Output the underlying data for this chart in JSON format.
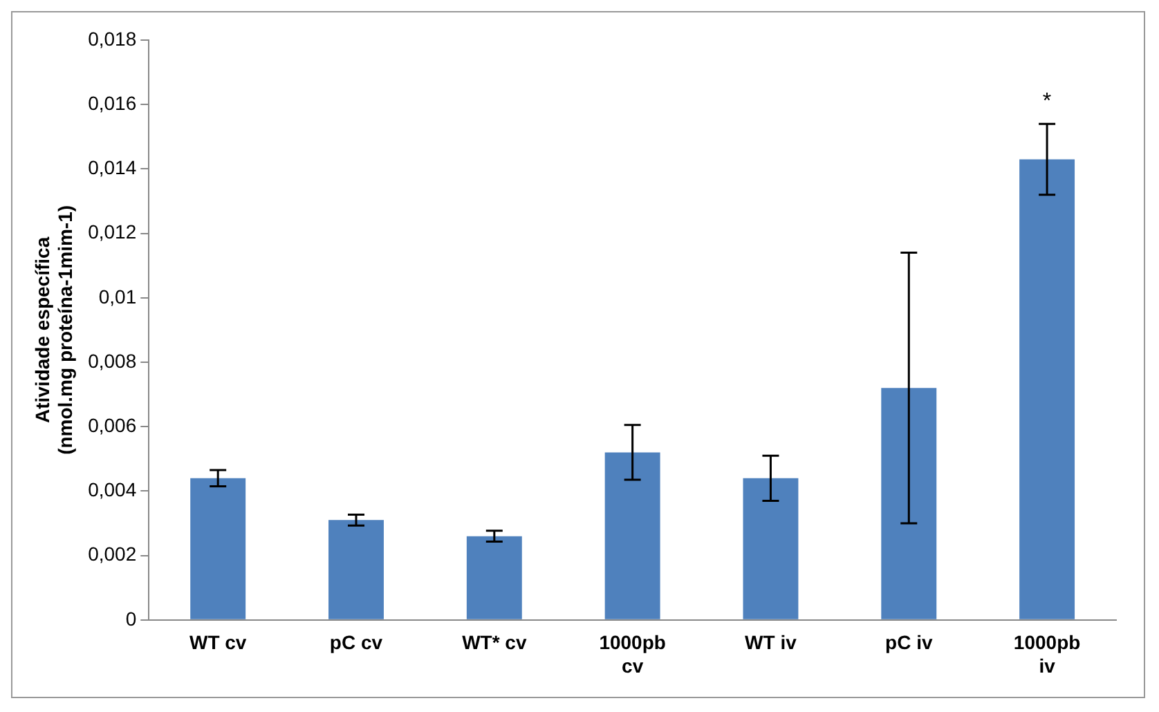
{
  "chart_data": {
    "type": "bar",
    "ylabel": "Atividade específica\n(nmol.mg proteína-1mim-1)",
    "categories": [
      "WT cv",
      "pC cv",
      "WT* cv",
      "1000pb cv",
      "WT iv",
      "pC iv",
      "1000pb iv"
    ],
    "values": [
      0.0044,
      0.0031,
      0.0026,
      0.0052,
      0.0044,
      0.0072,
      0.0143
    ],
    "errors": [
      0.00025,
      0.00017,
      0.00017,
      0.00085,
      0.0007,
      0.0042,
      0.0011
    ],
    "color": "#4f81bd",
    "ylim": [
      0,
      0.018
    ],
    "yticks": [
      0,
      {
        "value": 0.002,
        "label": "0,002"
      },
      {
        "value": 0.004,
        "label": "0,004"
      },
      {
        "value": 0.006,
        "label": "0,006"
      },
      {
        "value": 0.008,
        "label": "0,008"
      },
      {
        "value": 0.01,
        "label": "0,01"
      },
      {
        "value": 0.012,
        "label": "0,012"
      },
      {
        "value": 0.014,
        "label": "0,014"
      },
      {
        "value": 0.016,
        "label": "0,016"
      },
      {
        "value": 0.018,
        "label": "0,018"
      }
    ],
    "annotations": [
      "*"
    ],
    "grid": false,
    "legend": false
  }
}
